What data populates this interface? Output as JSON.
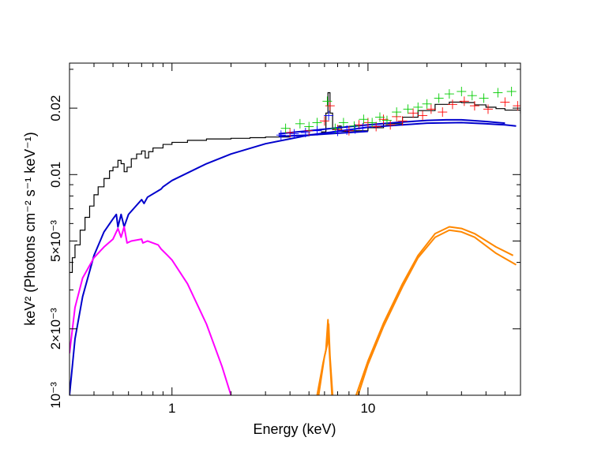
{
  "chart_data": {
    "type": "line",
    "title": "",
    "xlabel": "Energy (keV)",
    "ylabel": "keV² (Photons cm⁻² s⁻¹ keV⁻¹)",
    "xscale": "log",
    "yscale": "log",
    "xlim": [
      0.3,
      60
    ],
    "ylim": [
      0.001,
      0.032
    ],
    "grid": false,
    "x_ticks": [
      {
        "value": 1,
        "label": "1"
      },
      {
        "value": 10,
        "label": "10"
      }
    ],
    "y_ticks": [
      {
        "value": 0.001,
        "label": "10⁻³"
      },
      {
        "value": 0.002,
        "label": "2×10⁻³"
      },
      {
        "value": 0.005,
        "label": "5×10⁻³"
      },
      {
        "value": 0.01,
        "label": "0.01"
      },
      {
        "value": 0.02,
        "label": "0.02"
      }
    ],
    "colors": {
      "total_model": "#000000",
      "continuum": "#0000cc",
      "soft_component": "#ff00ff",
      "reflection": "#ff8800",
      "data_red": "#ff0000",
      "data_green": "#00cc00",
      "data_blue": "#0000ff"
    },
    "series": [
      {
        "color": "#000000",
        "style": "step",
        "points": [
          [
            0.3,
            0.0036
          ],
          [
            0.31,
            0.0042
          ],
          [
            0.32,
            0.0048
          ],
          [
            0.34,
            0.0056
          ],
          [
            0.36,
            0.0064
          ],
          [
            0.38,
            0.0072
          ],
          [
            0.4,
            0.0081
          ],
          [
            0.42,
            0.0088
          ],
          [
            0.45,
            0.0096
          ],
          [
            0.48,
            0.0104
          ],
          [
            0.5,
            0.0108
          ],
          [
            0.53,
            0.0116
          ],
          [
            0.55,
            0.0112
          ],
          [
            0.57,
            0.0103
          ],
          [
            0.59,
            0.0108
          ],
          [
            0.62,
            0.0118
          ],
          [
            0.66,
            0.0124
          ],
          [
            0.7,
            0.0128
          ],
          [
            0.73,
            0.0119
          ],
          [
            0.76,
            0.0127
          ],
          [
            0.8,
            0.0132
          ],
          [
            0.9,
            0.0137
          ],
          [
            1.0,
            0.014
          ],
          [
            1.2,
            0.0143
          ],
          [
            1.5,
            0.0145
          ],
          [
            2.0,
            0.0146
          ],
          [
            2.5,
            0.0147
          ],
          [
            3.0,
            0.0148
          ],
          [
            4.0,
            0.015
          ],
          [
            5.0,
            0.0152
          ],
          [
            5.8,
            0.0156
          ],
          [
            6.1,
            0.019
          ],
          [
            6.25,
            0.0235
          ],
          [
            6.4,
            0.019
          ],
          [
            6.6,
            0.016
          ],
          [
            7.0,
            0.0157
          ],
          [
            7.1,
            0.0166
          ],
          [
            7.3,
            0.0157
          ],
          [
            8.0,
            0.0158
          ],
          [
            10.0,
            0.0163
          ],
          [
            12.0,
            0.017
          ],
          [
            15.0,
            0.0182
          ],
          [
            18.0,
            0.0195
          ],
          [
            22.0,
            0.0208
          ],
          [
            26.0,
            0.0213
          ],
          [
            30.0,
            0.0212
          ],
          [
            35.0,
            0.0207
          ],
          [
            40.0,
            0.0202
          ],
          [
            45.0,
            0.0199
          ],
          [
            50.0,
            0.0196
          ],
          [
            60.0,
            0.019
          ]
        ]
      },
      {
        "color": "#0000cc",
        "style": "line",
        "points": [
          [
            0.3,
            0.001
          ],
          [
            0.32,
            0.0018
          ],
          [
            0.35,
            0.0028
          ],
          [
            0.4,
            0.0043
          ],
          [
            0.45,
            0.0055
          ],
          [
            0.5,
            0.0063
          ],
          [
            0.52,
            0.0066
          ],
          [
            0.53,
            0.0058
          ],
          [
            0.55,
            0.0066
          ],
          [
            0.57,
            0.0058
          ],
          [
            0.6,
            0.0066
          ],
          [
            0.7,
            0.0077
          ],
          [
            0.72,
            0.0074
          ],
          [
            0.75,
            0.0079
          ],
          [
            0.88,
            0.0086
          ],
          [
            0.9,
            0.0088
          ],
          [
            1.0,
            0.0094
          ],
          [
            1.5,
            0.0112
          ],
          [
            2.0,
            0.0124
          ],
          [
            3.0,
            0.0138
          ],
          [
            5.0,
            0.0151
          ],
          [
            10.0,
            0.0164
          ],
          [
            20.0,
            0.0171
          ],
          [
            30.0,
            0.0172
          ],
          [
            40.0,
            0.017
          ],
          [
            50.0,
            0.0168
          ],
          [
            57.0,
            0.0166
          ]
        ]
      },
      {
        "color": "#0000cc",
        "style": "line",
        "points": [
          [
            3.5,
            0.0153
          ],
          [
            5.0,
            0.0158
          ],
          [
            7.0,
            0.0163
          ],
          [
            10.0,
            0.0168
          ],
          [
            15.0,
            0.0173
          ],
          [
            20.0,
            0.0176
          ],
          [
            25.0,
            0.0177
          ],
          [
            30.0,
            0.0177
          ],
          [
            40.0,
            0.0174
          ],
          [
            50.0,
            0.0171
          ]
        ]
      },
      {
        "color": "#0000cc",
        "style": "line",
        "points": [
          [
            3.5,
            0.0149
          ],
          [
            5.0,
            0.0151
          ],
          [
            7.0,
            0.0154
          ],
          [
            10.0,
            0.0157
          ]
        ]
      },
      {
        "color": "#ff00ff",
        "style": "line",
        "points": [
          [
            0.3,
            0.00155
          ],
          [
            0.32,
            0.0025
          ],
          [
            0.35,
            0.0034
          ],
          [
            0.4,
            0.0042
          ],
          [
            0.45,
            0.0047
          ],
          [
            0.5,
            0.0051
          ],
          [
            0.53,
            0.0057
          ],
          [
            0.55,
            0.0052
          ],
          [
            0.57,
            0.0058
          ],
          [
            0.59,
            0.0049
          ],
          [
            0.62,
            0.005
          ],
          [
            0.7,
            0.0051
          ],
          [
            0.71,
            0.0049
          ],
          [
            0.75,
            0.005
          ],
          [
            0.85,
            0.0048
          ],
          [
            0.88,
            0.0046
          ],
          [
            0.95,
            0.0043
          ],
          [
            1.0,
            0.0041
          ],
          [
            1.2,
            0.0032
          ],
          [
            1.5,
            0.0021
          ],
          [
            1.8,
            0.00135
          ],
          [
            2.0,
            0.001
          ]
        ]
      },
      {
        "color": "#ff8800",
        "style": "line",
        "points": [
          [
            5.5,
            0.001
          ],
          [
            5.9,
            0.0014
          ],
          [
            6.1,
            0.0016
          ],
          [
            6.25,
            0.0022
          ],
          [
            6.35,
            0.0016
          ],
          [
            6.55,
            0.001
          ]
        ]
      },
      {
        "color": "#ff8800",
        "style": "line",
        "points": [
          [
            5.6,
            0.001
          ],
          [
            6.0,
            0.0015
          ],
          [
            6.2,
            0.0017
          ],
          [
            6.3,
            0.0021
          ],
          [
            6.4,
            0.0015
          ],
          [
            6.6,
            0.001
          ]
        ]
      },
      {
        "color": "#ff8800",
        "style": "line",
        "points": [
          [
            8.7,
            0.001
          ],
          [
            10.0,
            0.00143
          ],
          [
            12.0,
            0.00212
          ],
          [
            15.0,
            0.0032
          ],
          [
            18.0,
            0.0043
          ],
          [
            22.0,
            0.0054
          ],
          [
            26.0,
            0.0058
          ],
          [
            30.0,
            0.0057
          ],
          [
            35.0,
            0.0054
          ],
          [
            45.0,
            0.0047
          ],
          [
            55.0,
            0.0043
          ]
        ]
      },
      {
        "color": "#ff8800",
        "style": "line",
        "points": [
          [
            8.9,
            0.001
          ],
          [
            10.0,
            0.00138
          ],
          [
            12.0,
            0.00205
          ],
          [
            15.0,
            0.0031
          ],
          [
            18.0,
            0.0042
          ],
          [
            22.0,
            0.0052
          ],
          [
            26.0,
            0.0056
          ],
          [
            30.0,
            0.0055
          ],
          [
            35.0,
            0.0052
          ],
          [
            45.0,
            0.0044
          ],
          [
            57.0,
            0.0039
          ]
        ]
      },
      {
        "color": "#ff0000",
        "style": "crosses",
        "points": [
          [
            4.0,
            0.0155
          ],
          [
            5.0,
            0.0158
          ],
          [
            6.0,
            0.0175
          ],
          [
            6.4,
            0.0205
          ],
          [
            7.0,
            0.016
          ],
          [
            8.0,
            0.0158
          ],
          [
            9.0,
            0.0168
          ],
          [
            10.0,
            0.0172
          ],
          [
            11.0,
            0.0165
          ],
          [
            12.0,
            0.0178
          ],
          [
            13.0,
            0.0168
          ],
          [
            14.0,
            0.0183
          ],
          [
            15.0,
            0.0175
          ],
          [
            17.0,
            0.019
          ],
          [
            19.0,
            0.0185
          ],
          [
            21.0,
            0.0198
          ],
          [
            24.0,
            0.0192
          ],
          [
            27.0,
            0.0208
          ],
          [
            31.0,
            0.0215
          ],
          [
            35.0,
            0.0205
          ],
          [
            41.0,
            0.0198
          ],
          [
            50.0,
            0.0213
          ],
          [
            58.0,
            0.0205
          ]
        ]
      },
      {
        "color": "#00cc00",
        "style": "crosses",
        "points": [
          [
            3.8,
            0.0162
          ],
          [
            4.5,
            0.017
          ],
          [
            5.0,
            0.0165
          ],
          [
            5.5,
            0.0172
          ],
          [
            6.2,
            0.0215
          ],
          [
            6.8,
            0.0162
          ],
          [
            7.5,
            0.0172
          ],
          [
            8.5,
            0.0166
          ],
          [
            9.5,
            0.0178
          ],
          [
            10.5,
            0.0172
          ],
          [
            11.5,
            0.0182
          ],
          [
            12.5,
            0.0176
          ],
          [
            14.0,
            0.0192
          ],
          [
            16.0,
            0.0198
          ],
          [
            18.0,
            0.0202
          ],
          [
            20.0,
            0.0209
          ],
          [
            23.0,
            0.0222
          ],
          [
            26.0,
            0.0232
          ],
          [
            30.0,
            0.0238
          ],
          [
            34.0,
            0.0228
          ],
          [
            39.0,
            0.0222
          ],
          [
            46.0,
            0.0235
          ],
          [
            54.0,
            0.0238
          ]
        ]
      },
      {
        "color": "#0000ff",
        "style": "crosses",
        "points": [
          [
            3.6,
            0.0151
          ],
          [
            4.2,
            0.0153
          ],
          [
            4.8,
            0.0155
          ],
          [
            5.5,
            0.0158
          ],
          [
            6.3,
            0.0185
          ],
          [
            7.0,
            0.0157
          ],
          [
            7.8,
            0.0159
          ],
          [
            8.6,
            0.0161
          ],
          [
            9.4,
            0.0163
          ]
        ]
      }
    ]
  }
}
